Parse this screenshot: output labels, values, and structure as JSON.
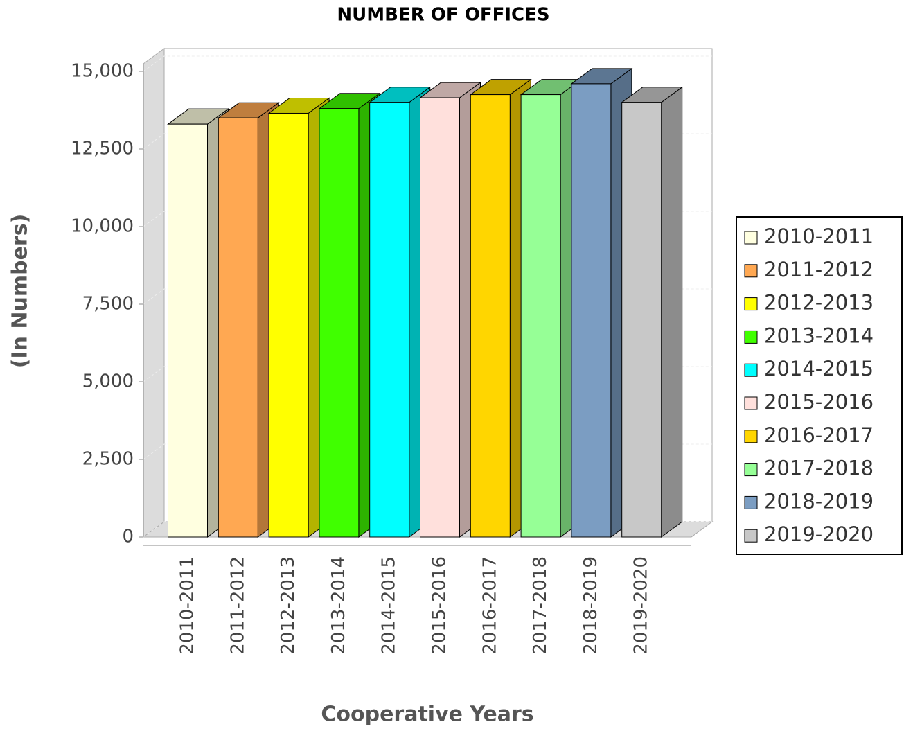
{
  "chart_data": {
    "type": "bar3d",
    "title": "NUMBER OF OFFICES",
    "x_label": "Cooperative Years",
    "y_label": "(In Numbers)",
    "categories": [
      "2010-2011",
      "2011-2012",
      "2012-2013",
      "2013-2014",
      "2014-2015",
      "2015-2016",
      "2016-2017",
      "2017-2018",
      "2018-2019",
      "2019-2020"
    ],
    "values": [
      13300,
      13500,
      13650,
      13800,
      14000,
      14150,
      14250,
      14250,
      14600,
      14000
    ],
    "colors": [
      "#ffffe0",
      "#ffa852",
      "#ffff00",
      "#40ff00",
      "#00ffff",
      "#ffe0dc",
      "#ffd600",
      "#96ff96",
      "#7b9dc2",
      "#c8c8c8"
    ],
    "ylim": [
      0,
      15000
    ],
    "yticks": [
      0,
      {
        "value": 2500,
        "label": "2,500"
      },
      {
        "value": 5000,
        "label": "5,000"
      },
      {
        "value": 7500,
        "label": "7,500"
      },
      {
        "value": 10000,
        "label": "10,000"
      },
      {
        "value": 12500,
        "label": "12,500"
      },
      {
        "value": 15000,
        "label": "15,000"
      }
    ],
    "grid": true,
    "legend": "right"
  }
}
